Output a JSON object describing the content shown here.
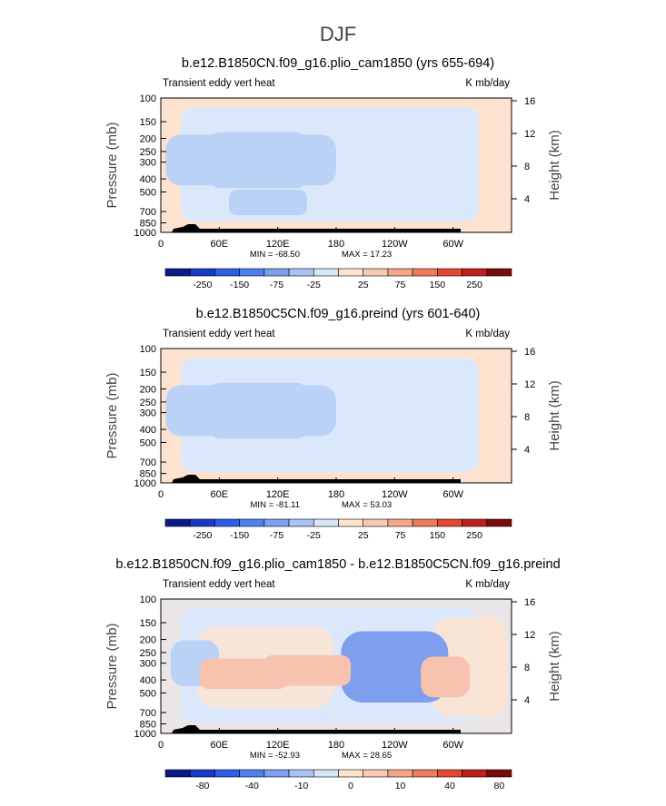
{
  "title": "DJF",
  "colors": {
    "bg_positive": "#fde3cf",
    "negative_light": "#dbe8fb",
    "negative_mid": "#b9d2f6",
    "negative_strong": "#7e9fee",
    "positive_mid": "#f7c3ae",
    "terrain": "#000000",
    "colorbar": [
      "#0b1a88",
      "#1a38c9",
      "#2c5ee9",
      "#4f7fee",
      "#7e9fee",
      "#a9c4f4",
      "#d6e5fa",
      "#fde3cf",
      "#f9c9b2",
      "#f5a689",
      "#ef7a5f",
      "#e3472f",
      "#be1e1e",
      "#7a0b0b"
    ]
  },
  "chart_data": [
    {
      "type": "heatmap",
      "title": "b.e12.B1850CN.f09_g16.plio_cam1850 (yrs 655-694)",
      "left_label": "Transient eddy vert heat",
      "right_label": "K mb/day",
      "ylabel": "Pressure (mb)",
      "y2label": "Height (km)",
      "yticks": [
        "100",
        "150",
        "200",
        "250",
        "300",
        "400",
        "500",
        "700",
        "850",
        "1000"
      ],
      "y2ticks": [
        "16",
        "12",
        "8",
        "4"
      ],
      "xticks": [
        "0",
        "60E",
        "120E",
        "180",
        "120W",
        "60W"
      ],
      "min_text": "MIN = -68.50",
      "max_text": "MAX = 17.23",
      "colorbar_ticks": [
        "-250",
        "-150",
        "-75",
        "-25",
        "25",
        "75",
        "150",
        "250"
      ],
      "blobs": [
        {
          "lon": 45,
          "p": 290,
          "w": 40,
          "h": 100,
          "level": "negative_mid"
        },
        {
          "lon": 100,
          "p": 290,
          "w": 55,
          "h": 110,
          "level": "negative_mid"
        },
        {
          "lon": 145,
          "p": 290,
          "w": 35,
          "h": 100,
          "level": "negative_mid"
        },
        {
          "lon": 110,
          "p": 600,
          "w": 40,
          "h": 50,
          "level": "negative_mid"
        }
      ]
    },
    {
      "type": "heatmap",
      "title": "b.e12.B1850C5CN.f09_g16.preind (yrs 601-640)",
      "left_label": "Transient eddy vert heat",
      "right_label": "K mb/day",
      "ylabel": "Pressure (mb)",
      "y2label": "Height (km)",
      "yticks": [
        "100",
        "150",
        "200",
        "250",
        "300",
        "400",
        "500",
        "700",
        "850",
        "1000"
      ],
      "y2ticks": [
        "16",
        "12",
        "8",
        "4"
      ],
      "xticks": [
        "0",
        "60E",
        "120E",
        "180",
        "120W",
        "60W"
      ],
      "min_text": "MIN = -81.11",
      "max_text": "MAX = 53.03",
      "colorbar_ticks": [
        "-250",
        "-150",
        "-75",
        "-25",
        "25",
        "75",
        "150",
        "250"
      ],
      "blobs": [
        {
          "lon": 45,
          "p": 290,
          "w": 40,
          "h": 100,
          "level": "negative_mid"
        },
        {
          "lon": 100,
          "p": 290,
          "w": 55,
          "h": 110,
          "level": "negative_mid"
        },
        {
          "lon": 145,
          "p": 290,
          "w": 35,
          "h": 100,
          "level": "negative_mid"
        }
      ]
    },
    {
      "type": "heatmap",
      "title": "b.e12.B1850CN.f09_g16.plio_cam1850 - b.e12.B1850C5CN.f09_g16.preind",
      "left_label": "Transient eddy vert heat",
      "right_label": "K mb/day",
      "ylabel": "Pressure (mb)",
      "y2label": "Height (km)",
      "yticks": [
        "100",
        "150",
        "200",
        "250",
        "300",
        "400",
        "500",
        "700",
        "850",
        "1000"
      ],
      "y2ticks": [
        "16",
        "12",
        "8",
        "4"
      ],
      "xticks": [
        "0",
        "60E",
        "120E",
        "180",
        "120W",
        "60W"
      ],
      "min_text": "MIN = -52.93",
      "max_text": "MAX = 28.65",
      "colorbar_ticks": [
        "-80",
        "-40",
        "-10",
        "0",
        "10",
        "40",
        "80"
      ],
      "blobs": [
        {
          "lon": 240,
          "p": 320,
          "w": 55,
          "h": 140,
          "level": "negative_strong"
        },
        {
          "lon": 35,
          "p": 300,
          "w": 25,
          "h": 90,
          "level": "negative_mid"
        },
        {
          "lon": 85,
          "p": 360,
          "w": 45,
          "h": 60,
          "level": "positive_mid"
        },
        {
          "lon": 150,
          "p": 340,
          "w": 45,
          "h": 60,
          "level": "positive_mid"
        },
        {
          "lon": 292,
          "p": 380,
          "w": 25,
          "h": 80,
          "level": "positive_mid"
        }
      ]
    }
  ]
}
